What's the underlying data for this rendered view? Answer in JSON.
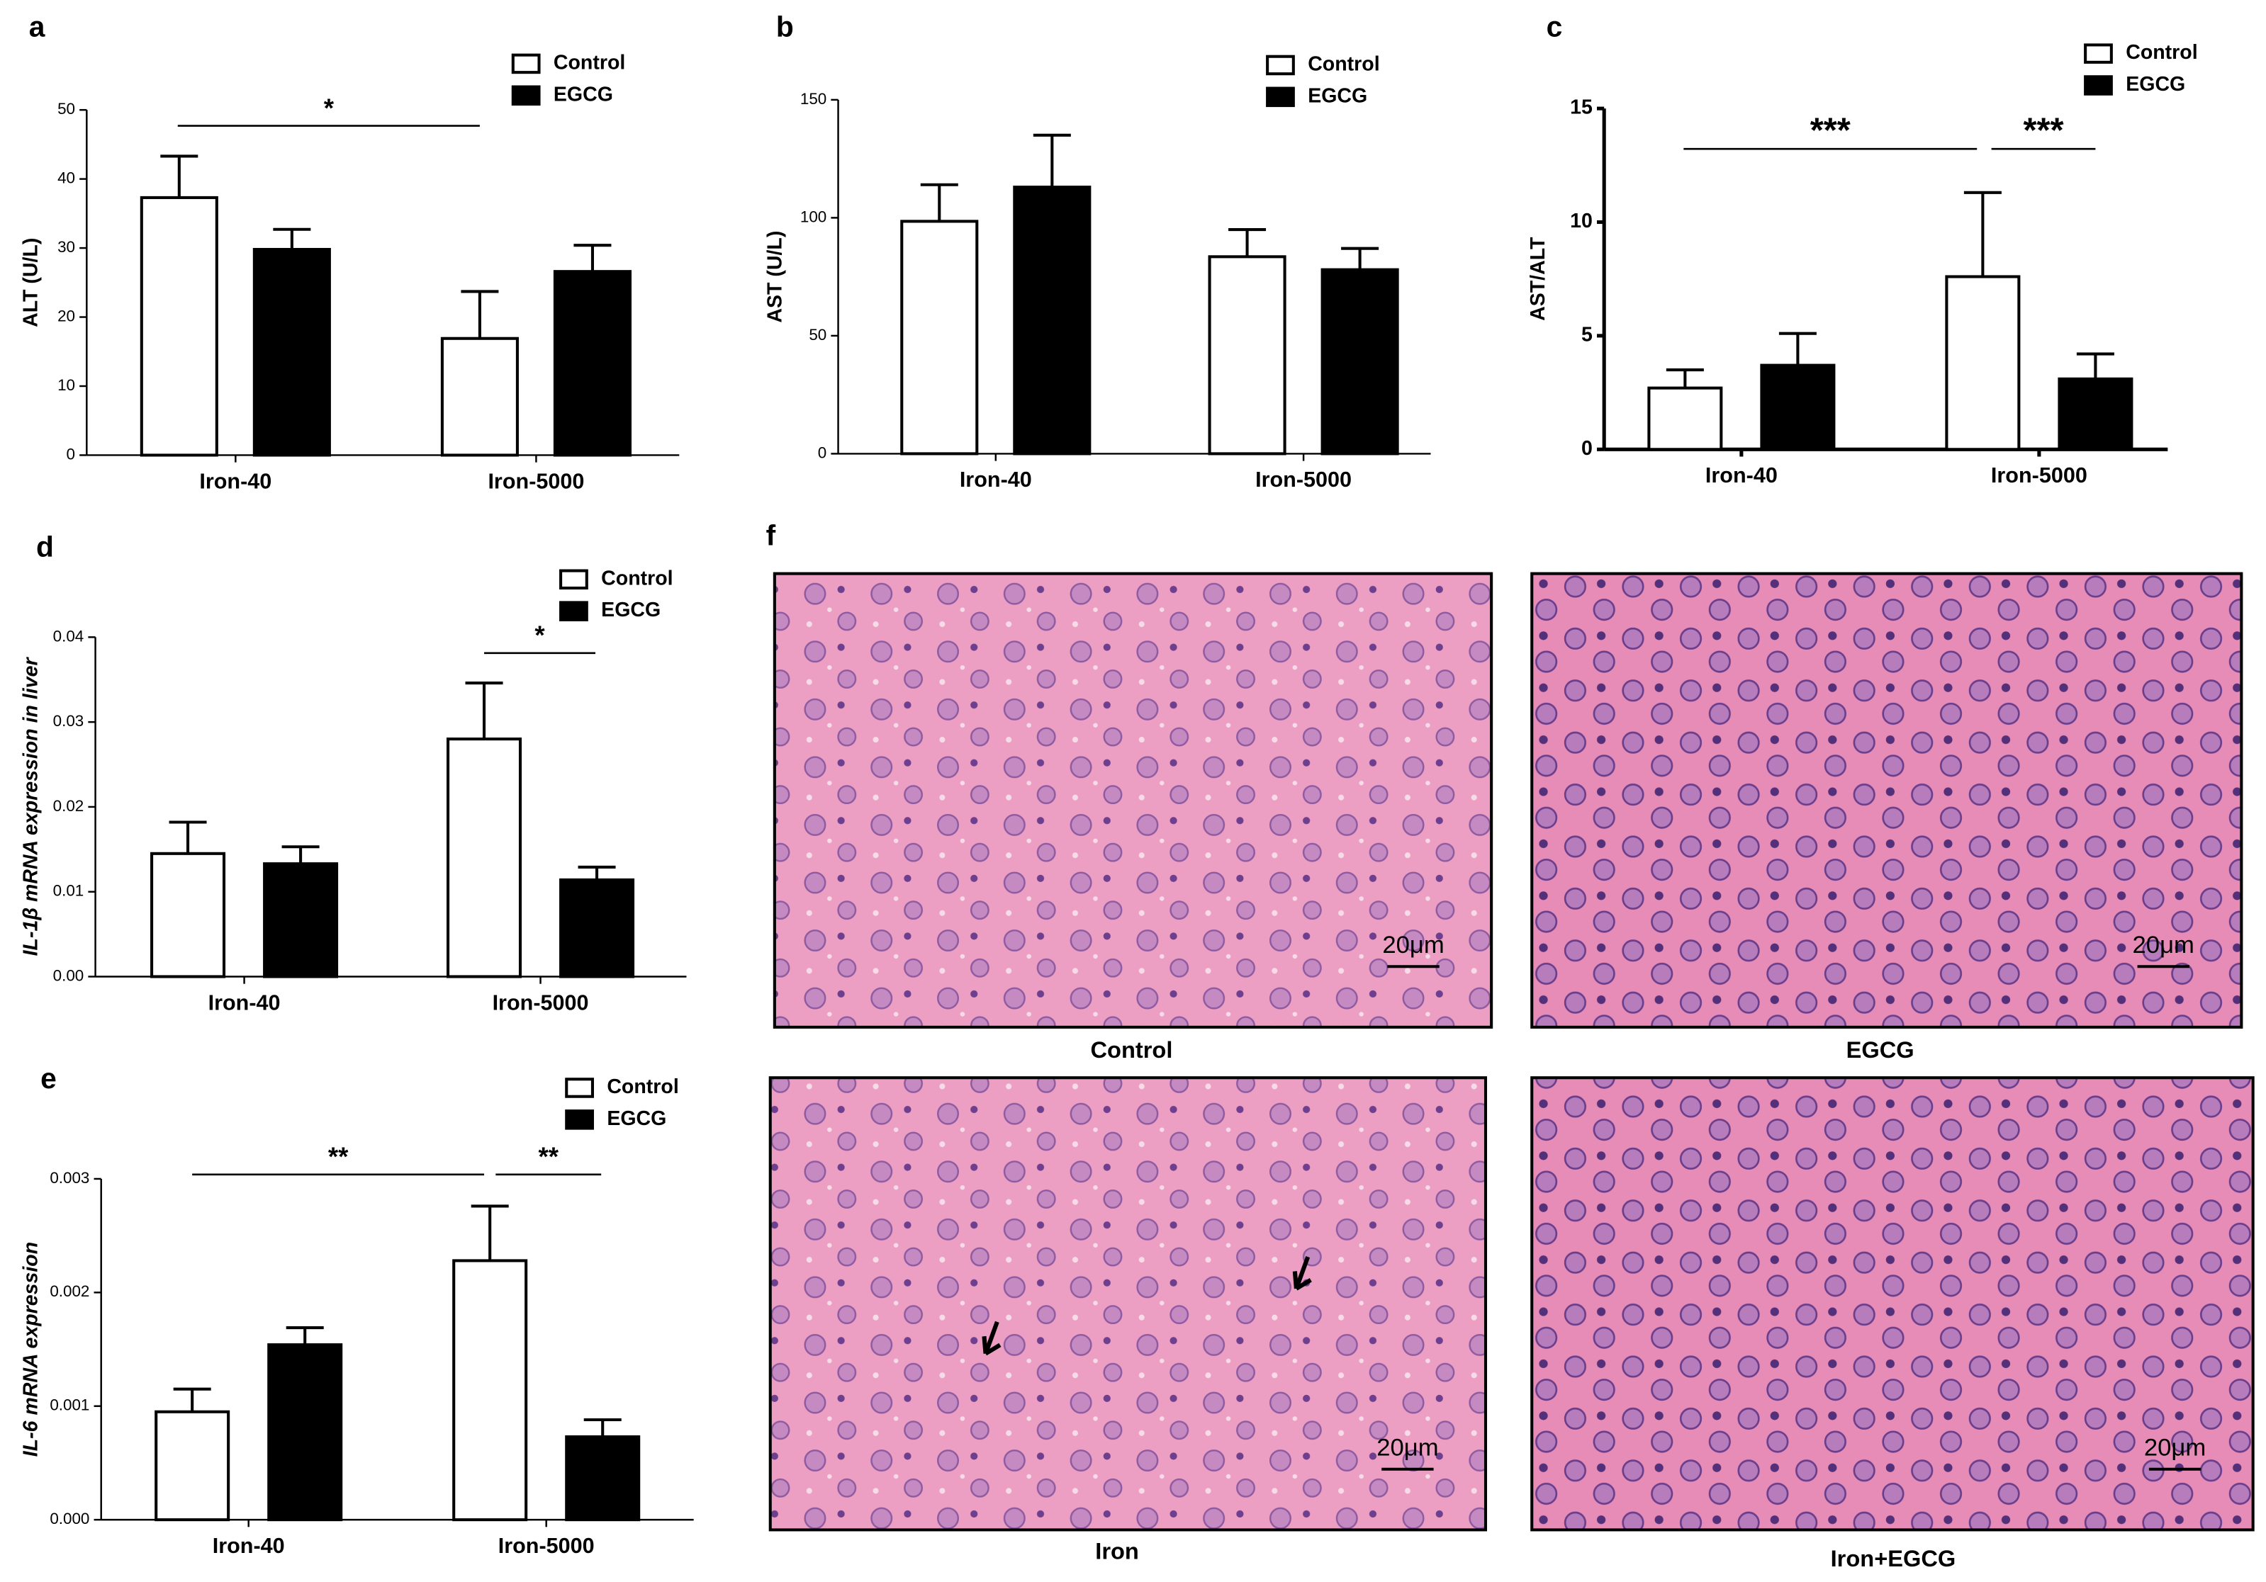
{
  "chart_data": [
    {
      "type": "bar",
      "panel_label": "a",
      "ylabel": "ALT (U/L)",
      "categories": [
        "Iron-40",
        "Iron-5000"
      ],
      "series": [
        {
          "name": "Control",
          "color": "#ffffff",
          "values": [
            37.3,
            16.9
          ],
          "errors": [
            6.0,
            6.8
          ]
        },
        {
          "name": "EGCG",
          "color": "#000000",
          "values": [
            29.8,
            26.6
          ],
          "errors": [
            2.9,
            3.8
          ]
        }
      ],
      "ylim": [
        0,
        50
      ],
      "yticks": [
        0,
        10,
        20,
        30,
        40,
        50
      ],
      "annotations": [
        {
          "text": "*"
        }
      ]
    },
    {
      "type": "bar",
      "panel_label": "b",
      "ylabel": "AST (U/L)",
      "categories": [
        "Iron-40",
        "Iron-5000"
      ],
      "series": [
        {
          "name": "Control",
          "color": "#ffffff",
          "values": [
            98.5,
            83.5
          ],
          "errors": [
            15.5,
            11.5
          ]
        },
        {
          "name": "EGCG",
          "color": "#000000",
          "values": [
            113,
            78
          ],
          "errors": [
            22,
            9
          ]
        }
      ],
      "ylim": [
        0,
        150
      ],
      "yticks": [
        0,
        50,
        100,
        150
      ],
      "annotations": []
    },
    {
      "type": "bar",
      "panel_label": "c",
      "ylabel": "AST/ALT",
      "categories": [
        "Iron-40",
        "Iron-5000"
      ],
      "series": [
        {
          "name": "Control",
          "color": "#ffffff",
          "values": [
            2.7,
            7.6
          ],
          "errors": [
            0.8,
            3.7
          ]
        },
        {
          "name": "EGCG",
          "color": "#000000",
          "values": [
            3.7,
            3.1
          ],
          "errors": [
            1.4,
            1.1
          ]
        }
      ],
      "ylim": [
        0,
        15
      ],
      "yticks": [
        0,
        5,
        10,
        15
      ],
      "annotations": [
        {
          "text": "***"
        },
        {
          "text": "***"
        }
      ]
    },
    {
      "type": "bar",
      "panel_label": "d",
      "ylabel": "IL-1β mRNA expression in liver",
      "categories": [
        "Iron-40",
        "Iron-5000"
      ],
      "series": [
        {
          "name": "Control",
          "color": "#ffffff",
          "values": [
            0.0145,
            0.028
          ],
          "errors": [
            0.0037,
            0.0066
          ]
        },
        {
          "name": "EGCG",
          "color": "#000000",
          "values": [
            0.0133,
            0.0114
          ],
          "errors": [
            0.002,
            0.0015
          ]
        }
      ],
      "ylim": [
        0,
        0.04
      ],
      "yticks": [
        {
          "value": 0,
          "label": "0.00"
        },
        {
          "value": 0.01,
          "label": "0.01"
        },
        {
          "value": 0.02,
          "label": "0.02"
        },
        {
          "value": 0.03,
          "label": "0.03"
        },
        {
          "value": 0.04,
          "label": "0.04"
        }
      ],
      "annotations": [
        {
          "text": "*"
        }
      ]
    },
    {
      "type": "bar",
      "panel_label": "e",
      "ylabel": "IL-6 mRNA expression",
      "categories": [
        "Iron-40",
        "Iron-5000"
      ],
      "series": [
        {
          "name": "Control",
          "color": "#ffffff",
          "values": [
            0.00095,
            0.00228
          ],
          "errors": [
            0.0002,
            0.00048
          ]
        },
        {
          "name": "EGCG",
          "color": "#000000",
          "values": [
            0.00154,
            0.00073
          ],
          "errors": [
            0.00015,
            0.00015
          ]
        }
      ],
      "ylim": [
        0,
        0.003
      ],
      "yticks": [
        {
          "value": 0,
          "label": "0.000"
        },
        {
          "value": 0.001,
          "label": "0.001"
        },
        {
          "value": 0.002,
          "label": "0.002"
        },
        {
          "value": 0.003,
          "label": "0.003"
        }
      ],
      "annotations": [
        {
          "text": "**"
        },
        {
          "text": "**"
        }
      ]
    }
  ],
  "histology": {
    "panel_label": "f",
    "images": [
      {
        "caption": "Control",
        "scale_bar": "20μm"
      },
      {
        "caption": "EGCG",
        "scale_bar": "20μm"
      },
      {
        "caption": "Iron",
        "scale_bar": "20μm"
      },
      {
        "caption": "Iron+EGCG",
        "scale_bar": "20μm"
      }
    ]
  }
}
